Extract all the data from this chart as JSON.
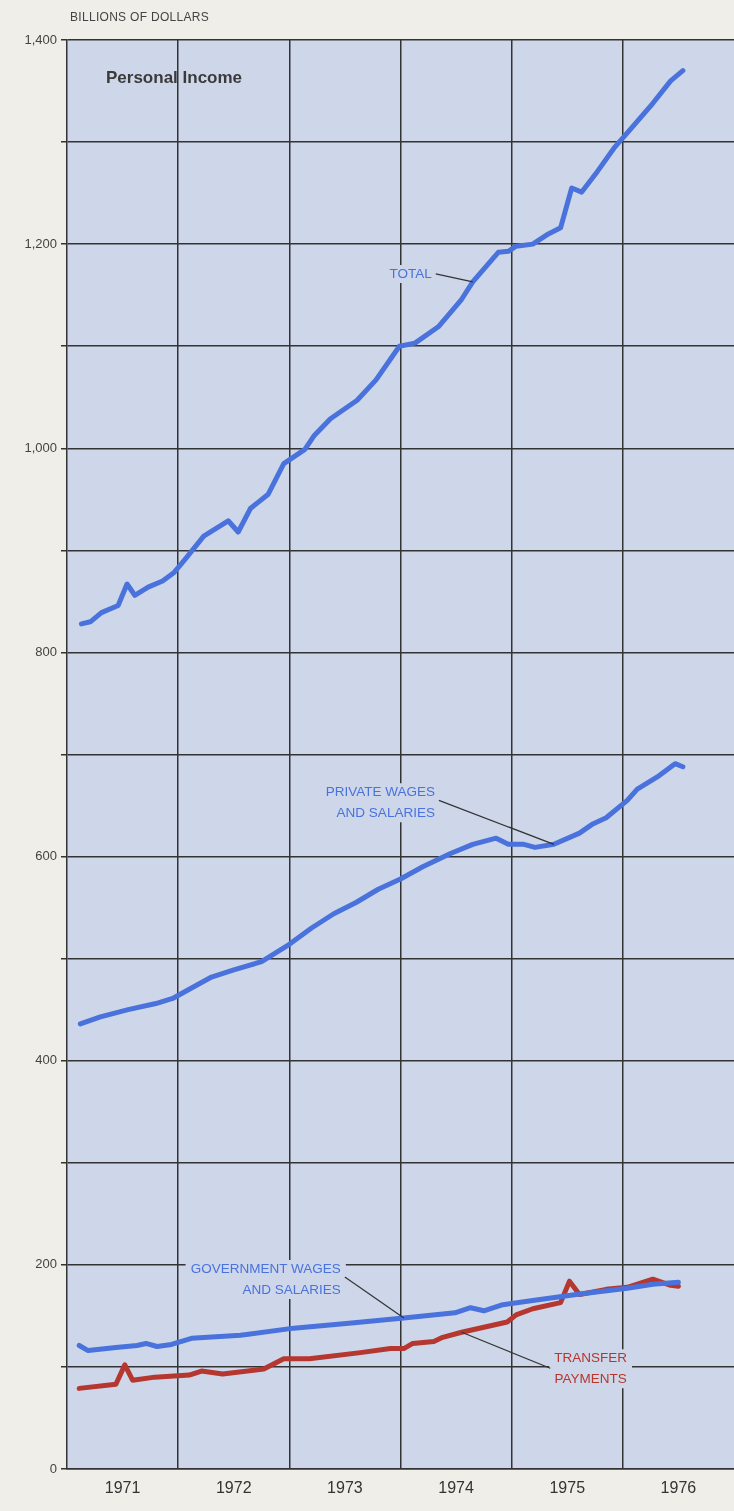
{
  "chart_data": {
    "type": "line",
    "title": "Personal Income",
    "ylabel": "BILLIONS OF DOLLARS",
    "xlim": [
      1971,
      1977
    ],
    "ylim": [
      0,
      1400
    ],
    "xticks": [
      {
        "value": 1971.5,
        "label": "1971"
      },
      {
        "value": 1972,
        "label": null
      },
      {
        "value": 1972.5,
        "label": "1972"
      },
      {
        "value": 1973,
        "label": null
      },
      {
        "value": 1973.5,
        "label": "1973"
      },
      {
        "value": 1974,
        "label": null
      },
      {
        "value": 1974.5,
        "label": "1974"
      },
      {
        "value": 1975,
        "label": null
      },
      {
        "value": 1975.5,
        "label": "1975"
      },
      {
        "value": 1976,
        "label": null
      },
      {
        "value": 1976.5,
        "label": "1976"
      }
    ],
    "yticks": [
      0,
      {
        "value": 100,
        "label": null
      },
      200,
      {
        "value": 300,
        "label": null
      },
      400,
      {
        "value": 500,
        "label": null
      },
      600,
      {
        "value": 700,
        "label": null
      },
      800,
      {
        "value": 900,
        "label": null
      },
      {
        "value": 1000,
        "label": "1,000"
      },
      {
        "value": 1100,
        "label": null
      },
      {
        "value": 1200,
        "label": "1,200"
      },
      {
        "value": 1300,
        "label": null
      },
      {
        "value": 1400,
        "label": "1,400"
      }
    ],
    "grid": true,
    "legend": false,
    "marker": "none",
    "series": [
      {
        "name": "TOTAL",
        "color": "#4a72dc",
        "x": [
          1971.13,
          1971.21,
          1971.31,
          1971.46,
          1971.54,
          1971.61,
          1971.73,
          1971.86,
          1971.96,
          1972.06,
          1972.23,
          1972.45,
          1972.54,
          1972.65,
          1972.81,
          1972.95,
          1973.14,
          1973.22,
          1973.37,
          1973.61,
          1973.78,
          1973.99,
          1974.13,
          1974.34,
          1974.55,
          1974.65,
          1974.88,
          1974.97,
          1975.04,
          1975.19,
          1975.33,
          1975.44,
          1975.54,
          1975.63,
          1975.77,
          1975.92,
          1976.04,
          1976.27,
          1976.43,
          1976.54
        ],
        "values": [
          828,
          830,
          839,
          846,
          867,
          856,
          864,
          870,
          878,
          891,
          914,
          929,
          918,
          941,
          955,
          985,
          999,
          1012,
          1029,
          1047,
          1067,
          1100,
          1103,
          1119,
          1146,
          1163,
          1192,
          1193,
          1198,
          1200,
          1210,
          1216,
          1255,
          1251,
          1271,
          1294,
          1309,
          1338,
          1360,
          1370
        ]
      },
      {
        "name": "PRIVATE WAGES AND SALARIES",
        "color": "#4a72dc",
        "x": [
          1971.12,
          1971.3,
          1971.55,
          1971.8,
          1971.95,
          1972.1,
          1972.3,
          1972.5,
          1972.75,
          1973.0,
          1973.2,
          1973.4,
          1973.6,
          1973.8,
          1974.0,
          1974.2,
          1974.45,
          1974.65,
          1974.86,
          1974.97,
          1975.11,
          1975.21,
          1975.38,
          1975.61,
          1975.73,
          1975.85,
          1976.04,
          1976.13,
          1976.31,
          1976.47,
          1976.54
        ],
        "values": [
          436,
          443,
          450,
          456,
          461,
          470,
          482,
          489,
          497,
          514,
          530,
          544,
          555,
          568,
          578,
          590,
          603,
          612,
          618,
          612,
          612,
          609,
          612,
          623,
          632,
          638,
          655,
          666,
          678,
          691,
          688
        ]
      },
      {
        "name": "GOVERNMENT WAGES AND SALARIES",
        "color": "#4a72dc",
        "x": [
          1971.11,
          1971.19,
          1971.44,
          1971.63,
          1971.71,
          1971.81,
          1971.94,
          1972.12,
          1972.56,
          1973.04,
          1973.56,
          1974.03,
          1974.49,
          1974.63,
          1974.75,
          1974.92,
          1975.19,
          1975.58,
          1976.04,
          1976.27,
          1976.5
        ],
        "values": [
          121,
          116,
          119,
          121,
          123,
          120,
          122,
          128,
          131,
          138,
          143,
          148,
          153,
          158,
          155,
          161,
          165,
          171,
          177,
          181,
          183
        ]
      },
      {
        "name": "TRANSFER PAYMENTS",
        "color": "#b5372f",
        "x": [
          1971.11,
          1971.44,
          1971.52,
          1971.59,
          1971.79,
          1972.1,
          1972.21,
          1972.4,
          1972.77,
          1972.95,
          1973.18,
          1973.64,
          1973.91,
          1974.03,
          1974.11,
          1974.3,
          1974.38,
          1974.55,
          1974.96,
          1975.04,
          1975.19,
          1975.44,
          1975.52,
          1975.61,
          1975.85,
          1976.04,
          1976.27,
          1976.43,
          1976.5
        ],
        "values": [
          79,
          83,
          102,
          87,
          90,
          92,
          96,
          93,
          98,
          108,
          108,
          114,
          118,
          118,
          123,
          125,
          129,
          134,
          144,
          151,
          157,
          163,
          184,
          171,
          176,
          178,
          186,
          180,
          179
        ]
      }
    ]
  }
}
